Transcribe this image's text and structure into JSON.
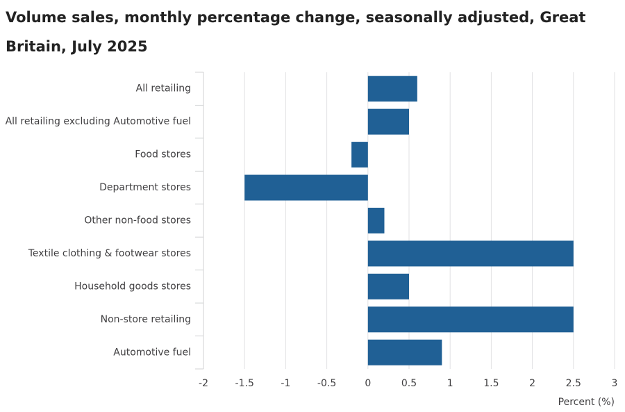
{
  "chart_data": {
    "type": "bar",
    "orientation": "horizontal",
    "title": "Volume sales, monthly percentage change, seasonally adjusted, Great Britain, July 2025",
    "categories": [
      "All retailing",
      "All retailing excluding Automotive fuel",
      "Food stores",
      "Department stores",
      "Other non-food stores",
      "Textile clothing & footwear stores",
      "Household goods stores",
      "Non-store retailing",
      "Automotive fuel"
    ],
    "values": [
      0.6,
      0.5,
      -0.2,
      -1.5,
      0.2,
      2.5,
      0.5,
      2.5,
      0.9
    ],
    "xlabel": "Percent (%)",
    "ylabel": "",
    "xlim": [
      -2,
      3
    ],
    "xticks": [
      -2,
      -1.5,
      -1,
      -0.5,
      0,
      0.5,
      1,
      1.5,
      2,
      2.5,
      3
    ],
    "xtick_labels": [
      "-2",
      "-1.5",
      "-1",
      "-0.5",
      "0",
      "0.5",
      "1",
      "1.5",
      "2",
      "2.5",
      "3"
    ],
    "grid": true,
    "legend": "none",
    "bar_color": "#206095"
  }
}
